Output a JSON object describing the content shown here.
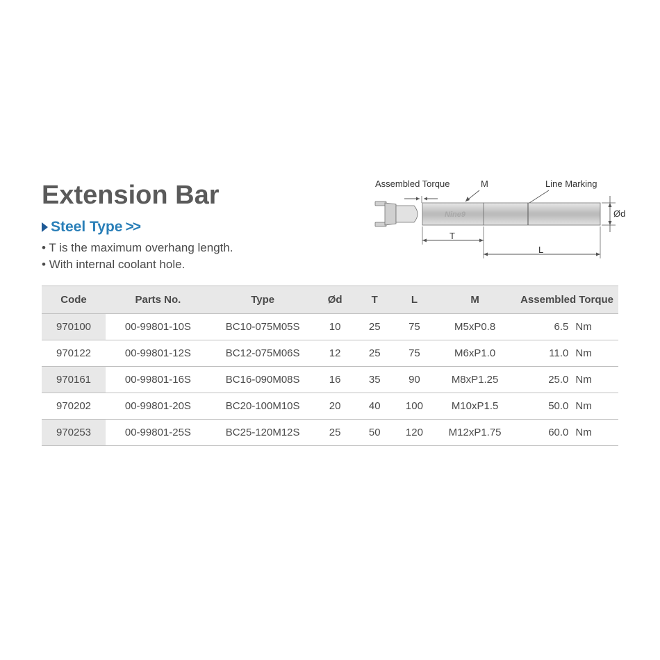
{
  "title": "Extension Bar",
  "subtitle": "Steel Type",
  "chevrons": ">>",
  "notes": [
    "T is the maximum overhang length.",
    "With internal coolant hole."
  ],
  "diagram": {
    "labels": {
      "assembled_torque": "Assembled Torque",
      "m": "M",
      "line_marking": "Line Marking",
      "t": "T",
      "l": "L",
      "d": "Ød"
    },
    "colors": {
      "line": "#555555",
      "body_light": "#dcdcdc",
      "body_mid": "#b5b5b5",
      "body_dark": "#9a9a9a"
    }
  },
  "table": {
    "columns": [
      "Code",
      "Parts No.",
      "Type",
      "Ød",
      "T",
      "L",
      "M",
      "Assembled Torque"
    ],
    "torque_unit": "Nm",
    "rows": [
      {
        "code": "970100",
        "parts": "00-99801-10S",
        "type": "BC10-075M05S",
        "d": "10",
        "t": "25",
        "l": "75",
        "m": "M5xP0.8",
        "torque": "6.5"
      },
      {
        "code": "970122",
        "parts": "00-99801-12S",
        "type": "BC12-075M06S",
        "d": "12",
        "t": "25",
        "l": "75",
        "m": "M6xP1.0",
        "torque": "11.0"
      },
      {
        "code": "970161",
        "parts": "00-99801-16S",
        "type": "BC16-090M08S",
        "d": "16",
        "t": "35",
        "l": "90",
        "m": "M8xP1.25",
        "torque": "25.0"
      },
      {
        "code": "970202",
        "parts": "00-99801-20S",
        "type": "BC20-100M10S",
        "d": "20",
        "t": "40",
        "l": "100",
        "m": "M10xP1.5",
        "torque": "50.0"
      },
      {
        "code": "970253",
        "parts": "00-99801-25S",
        "type": "BC25-120M12S",
        "d": "25",
        "t": "50",
        "l": "120",
        "m": "M12xP1.75",
        "torque": "60.0"
      }
    ]
  }
}
